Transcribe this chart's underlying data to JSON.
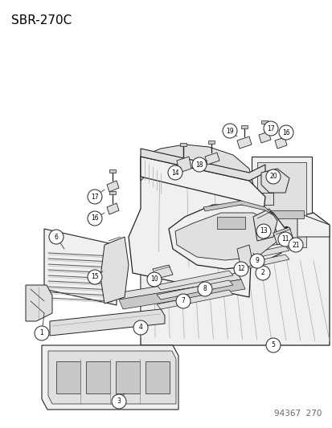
{
  "title": "SBR–270C",
  "footer": "94367  270",
  "bg_color": "#ffffff",
  "title_fontsize": 11,
  "footer_fontsize": 7.5,
  "line_color": "#222222",
  "fill_light": "#f0f0f0",
  "fill_mid": "#e0e0e0",
  "fill_dark": "#c8c8c8",
  "label_circle_r": 0.022
}
